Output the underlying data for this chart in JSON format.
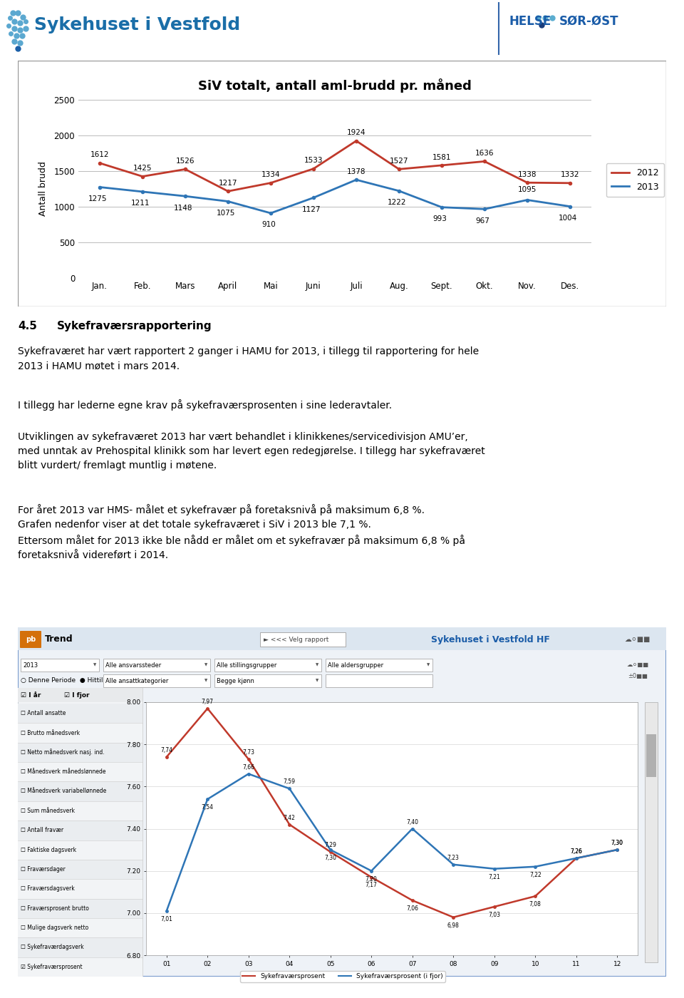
{
  "page_bg": "#ffffff",
  "chart1": {
    "title": "SiV totalt, antall aml-brudd pr. måned",
    "ylabel": "Antall brudd",
    "months": [
      "Jan.",
      "Feb.",
      "Mars",
      "April",
      "Mai",
      "Juni",
      "Juli",
      "Aug.",
      "Sept.",
      "Okt.",
      "Nov.",
      "Des."
    ],
    "series_2012": [
      1612,
      1425,
      1526,
      1217,
      1334,
      1533,
      1924,
      1527,
      1581,
      1636,
      1338,
      1332
    ],
    "series_2013": [
      1275,
      1211,
      1148,
      1075,
      910,
      1127,
      1378,
      1222,
      993,
      967,
      1095,
      1004
    ],
    "color_2012": "#c0392b",
    "color_2013": "#2e75b6",
    "ylim": [
      0,
      2500
    ],
    "yticks": [
      0,
      500,
      1000,
      1500,
      2000,
      2500
    ],
    "grid_color": "#bbbbbb"
  },
  "paragraphs": [
    {
      "bold_prefix": "4.5",
      "bold_text": "Sykefraværsrapportering",
      "body": null
    },
    {
      "bold_prefix": null,
      "bold_text": null,
      "body": "Sykefraværet har vært rapportert 2 ganger i HAMU for 2013, i tillegg til rapportering for hele\n2013 i HAMU møtet i mars 2014."
    },
    {
      "bold_prefix": null,
      "bold_text": null,
      "body": "I tillegg har lederne egne krav på sykefraværsprosenten i sine lederavtaler."
    },
    {
      "bold_prefix": null,
      "bold_text": null,
      "body": "Utviklingen av sykefraværet 2013 har vært behandlet i klinikkenes/servicedivisjon AMU’er,\nmed unntak av Prehospital klinikk som har levert egen redegjørelse. I tillegg har sykefraværet\nblitt vurdert/ fremlagt muntlig i møtene."
    },
    {
      "bold_prefix": null,
      "bold_text": null,
      "body": "For året 2013 var HMS- målet et sykefravær på foretaksnivå på maksimum 6,8 %.\nGrafen nedenfor viser at det totale sykefraværet i SiV i 2013 ble 7,1 %.\nEttersom målet for 2013 ikke ble nådd er målet om et sykefravær på maksimum 6,8 % på\nforetaksnivå videreført i 2014."
    }
  ],
  "chart2": {
    "toolbar_right": "Sykehuset i Vestfold HF",
    "series_red_label": "Sykefraværsprosent",
    "series_blue_label": "Sykefraværsprosent (i fjor)",
    "series_red": [
      7.74,
      7.97,
      7.73,
      7.42,
      7.29,
      7.17,
      7.06,
      6.98,
      7.03,
      7.08,
      7.26,
      7.3
    ],
    "series_blue": [
      7.01,
      7.54,
      7.66,
      7.59,
      7.3,
      7.2,
      7.4,
      7.23,
      7.21,
      7.22,
      7.26,
      7.3
    ],
    "red_labels": [
      "7,74",
      "7,97",
      "7,73",
      "7,42",
      "7,29",
      "7,17",
      "7,06",
      "6,98",
      "7,03",
      "7,08",
      "7,26",
      "7,30"
    ],
    "blue_labels": [
      "7,01",
      "7,54",
      "7,66",
      "7,59",
      "7,30",
      "7,20",
      "7,40",
      "7,23",
      "7,21",
      "7,22",
      "7,26",
      "7,30"
    ],
    "color_red": "#c0392b",
    "color_blue": "#2e75b6",
    "ylim": [
      6.8,
      8.0
    ],
    "yticks": [
      6.8,
      7.0,
      7.2,
      7.4,
      7.6,
      7.8,
      8.0
    ],
    "sidebar_items": [
      "Antall ansatte",
      "Brutto månedsverk",
      "Netto månedsverk nasj. ind.",
      "Månedsverk månedslønnede",
      "Månedsverk variabellønnede",
      "Sum månedsverk",
      "Antall fravær",
      "Faktiske dagsverk",
      "Fraværsdager",
      "Fraværsdagsverk",
      "Fraværsprosent brutto",
      "Mulige dagsverk netto",
      "Sykefraværdagsverk",
      "Sykefraværsprosent"
    ]
  }
}
